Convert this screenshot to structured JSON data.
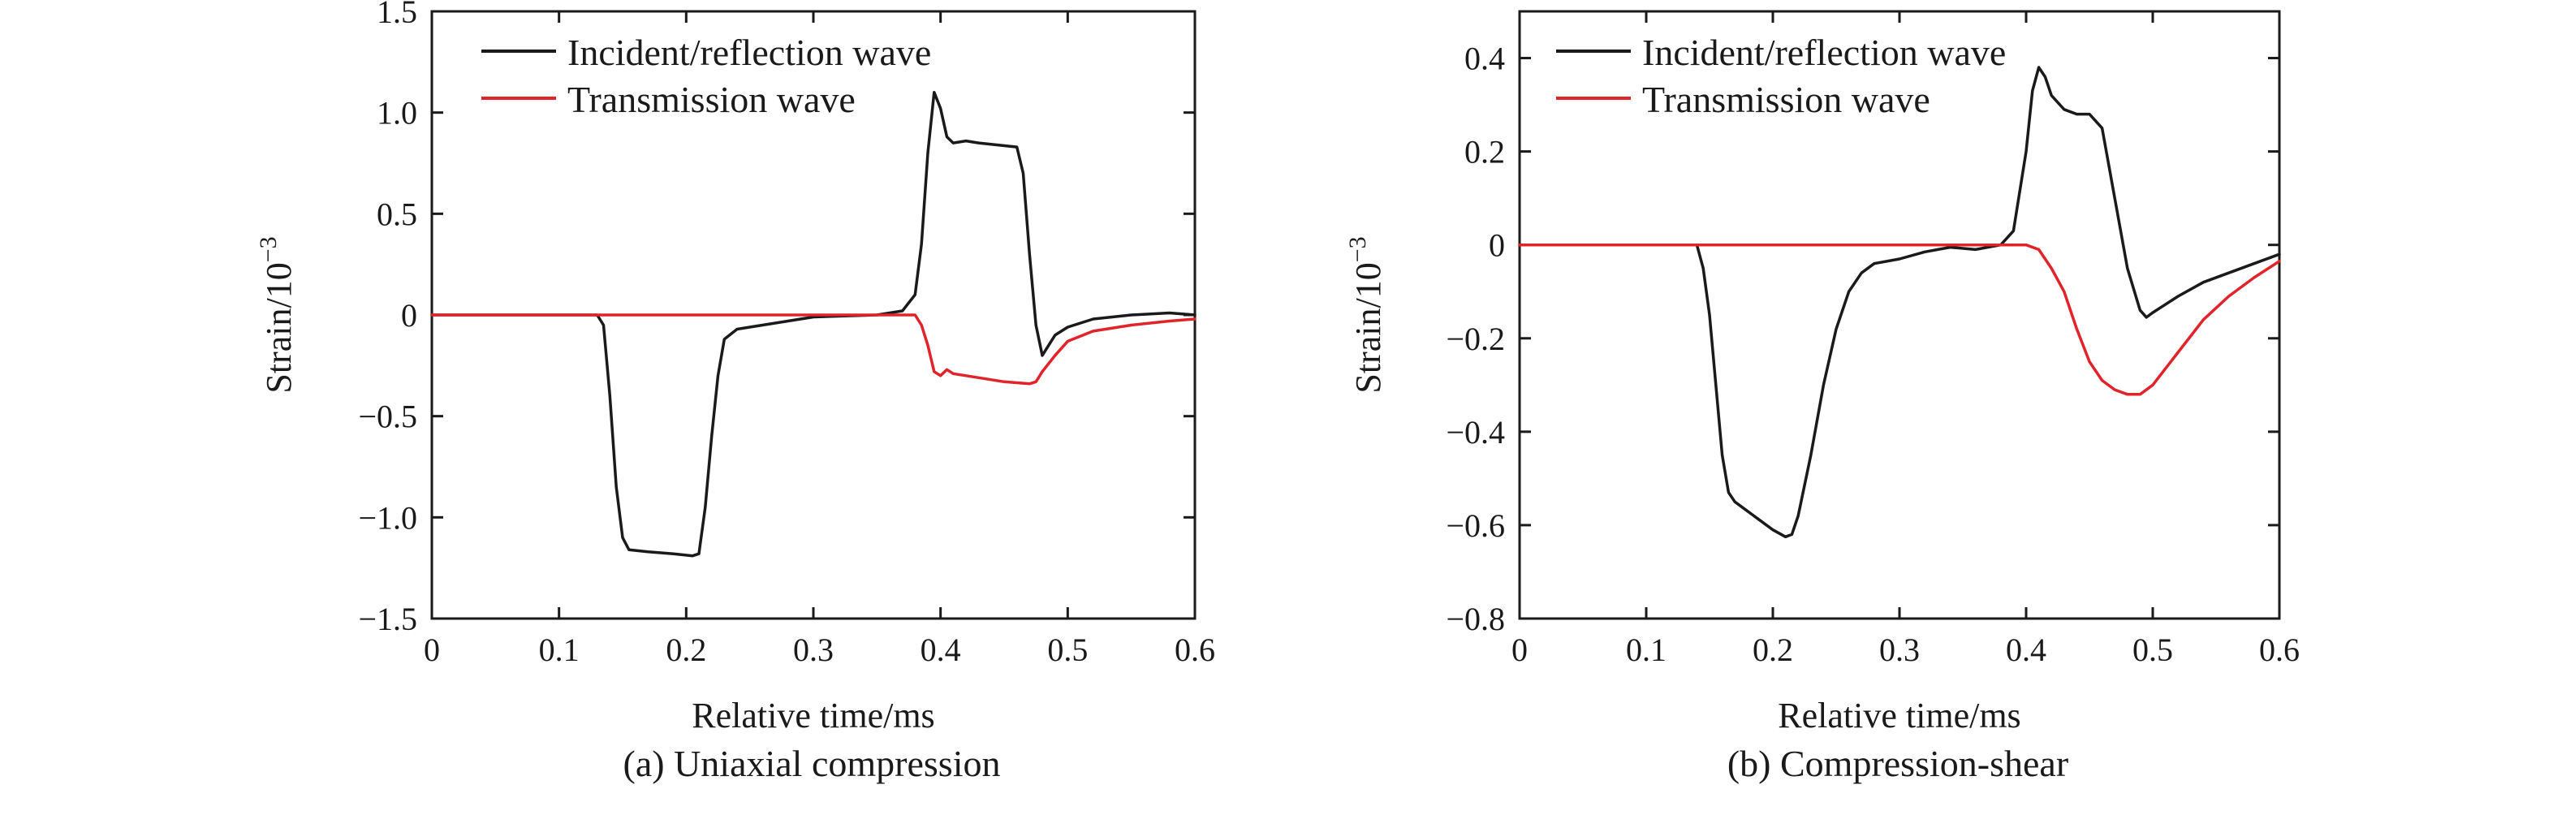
{
  "colors": {
    "incident_reflection": "#1a1a1a",
    "transmission": "#e0242a"
  },
  "chart_data": [
    {
      "type": "line",
      "caption": "(a) Uniaxial compression",
      "xlabel": "Relative time/ms",
      "ylabel": "Strain/10",
      "ylabel_exp": "−3",
      "xlim": [
        0,
        0.6
      ],
      "ylim": [
        -1.5,
        1.5
      ],
      "xticks": [
        0,
        0.1,
        0.2,
        0.3,
        0.4,
        0.5,
        0.6
      ],
      "xtick_labels": [
        "0",
        "0.1",
        "0.2",
        "0.3",
        "0.4",
        "0.5",
        "0.6"
      ],
      "yticks": [
        -1.5,
        -1.0,
        -0.5,
        0,
        0.5,
        1.0,
        1.5
      ],
      "ytick_labels": [
        "−1.5",
        "−1.0",
        "−0.5",
        "0",
        "0.5",
        "1.0",
        "1.5"
      ],
      "legend_position": "top-left",
      "series": [
        {
          "name": "Incident/reflection wave",
          "color": "#1a1a1a",
          "points": [
            [
              0,
              0
            ],
            [
              0.05,
              0
            ],
            [
              0.1,
              0
            ],
            [
              0.13,
              0
            ],
            [
              0.135,
              -0.05
            ],
            [
              0.14,
              -0.4
            ],
            [
              0.145,
              -0.85
            ],
            [
              0.15,
              -1.1
            ],
            [
              0.155,
              -1.16
            ],
            [
              0.17,
              -1.17
            ],
            [
              0.19,
              -1.18
            ],
            [
              0.205,
              -1.19
            ],
            [
              0.21,
              -1.18
            ],
            [
              0.215,
              -0.95
            ],
            [
              0.22,
              -0.6
            ],
            [
              0.225,
              -0.3
            ],
            [
              0.23,
              -0.12
            ],
            [
              0.24,
              -0.07
            ],
            [
              0.26,
              -0.05
            ],
            [
              0.28,
              -0.03
            ],
            [
              0.3,
              -0.01
            ],
            [
              0.35,
              0
            ],
            [
              0.37,
              0.02
            ],
            [
              0.38,
              0.1
            ],
            [
              0.385,
              0.35
            ],
            [
              0.39,
              0.8
            ],
            [
              0.395,
              1.1
            ],
            [
              0.4,
              1.02
            ],
            [
              0.405,
              0.88
            ],
            [
              0.41,
              0.85
            ],
            [
              0.42,
              0.86
            ],
            [
              0.43,
              0.85
            ],
            [
              0.445,
              0.84
            ],
            [
              0.46,
              0.83
            ],
            [
              0.465,
              0.7
            ],
            [
              0.47,
              0.3
            ],
            [
              0.475,
              -0.05
            ],
            [
              0.48,
              -0.2
            ],
            [
              0.485,
              -0.15
            ],
            [
              0.49,
              -0.1
            ],
            [
              0.5,
              -0.06
            ],
            [
              0.52,
              -0.02
            ],
            [
              0.55,
              0
            ],
            [
              0.58,
              0.01
            ],
            [
              0.6,
              0
            ]
          ]
        },
        {
          "name": "Transmission wave",
          "color": "#e0242a",
          "points": [
            [
              0,
              0
            ],
            [
              0.1,
              0
            ],
            [
              0.2,
              0
            ],
            [
              0.3,
              0
            ],
            [
              0.35,
              0
            ],
            [
              0.38,
              0
            ],
            [
              0.385,
              -0.05
            ],
            [
              0.39,
              -0.15
            ],
            [
              0.395,
              -0.28
            ],
            [
              0.4,
              -0.3
            ],
            [
              0.405,
              -0.27
            ],
            [
              0.41,
              -0.29
            ],
            [
              0.43,
              -0.31
            ],
            [
              0.45,
              -0.33
            ],
            [
              0.47,
              -0.34
            ],
            [
              0.475,
              -0.33
            ],
            [
              0.48,
              -0.28
            ],
            [
              0.49,
              -0.2
            ],
            [
              0.5,
              -0.13
            ],
            [
              0.52,
              -0.08
            ],
            [
              0.55,
              -0.05
            ],
            [
              0.58,
              -0.03
            ],
            [
              0.6,
              -0.02
            ]
          ]
        }
      ]
    },
    {
      "type": "line",
      "caption": "(b) Compression-shear",
      "xlabel": "Relative time/ms",
      "ylabel": "Strain/10",
      "ylabel_exp": "−3",
      "xlim": [
        0,
        0.6
      ],
      "ylim": [
        -0.8,
        0.5
      ],
      "xticks": [
        0,
        0.1,
        0.2,
        0.3,
        0.4,
        0.5,
        0.6
      ],
      "xtick_labels": [
        "0",
        "0.1",
        "0.2",
        "0.3",
        "0.4",
        "0.5",
        "0.6"
      ],
      "yticks": [
        -0.8,
        -0.6,
        -0.4,
        -0.2,
        0,
        0.2,
        0.4
      ],
      "ytick_labels": [
        "−0.8",
        "−0.6",
        "−0.4",
        "−0.2",
        "0",
        "0.2",
        "0.4"
      ],
      "legend_position": "top-left",
      "series": [
        {
          "name": "Incident/reflection wave",
          "color": "#1a1a1a",
          "points": [
            [
              0,
              0
            ],
            [
              0.05,
              0
            ],
            [
              0.1,
              0
            ],
            [
              0.14,
              0
            ],
            [
              0.145,
              -0.05
            ],
            [
              0.15,
              -0.15
            ],
            [
              0.155,
              -0.3
            ],
            [
              0.16,
              -0.45
            ],
            [
              0.165,
              -0.53
            ],
            [
              0.17,
              -0.55
            ],
            [
              0.18,
              -0.57
            ],
            [
              0.19,
              -0.59
            ],
            [
              0.2,
              -0.61
            ],
            [
              0.21,
              -0.625
            ],
            [
              0.215,
              -0.62
            ],
            [
              0.22,
              -0.58
            ],
            [
              0.23,
              -0.45
            ],
            [
              0.24,
              -0.3
            ],
            [
              0.25,
              -0.18
            ],
            [
              0.26,
              -0.1
            ],
            [
              0.27,
              -0.06
            ],
            [
              0.28,
              -0.04
            ],
            [
              0.3,
              -0.03
            ],
            [
              0.32,
              -0.015
            ],
            [
              0.34,
              -0.005
            ],
            [
              0.36,
              -0.01
            ],
            [
              0.38,
              0
            ],
            [
              0.39,
              0.03
            ],
            [
              0.4,
              0.2
            ],
            [
              0.405,
              0.33
            ],
            [
              0.41,
              0.38
            ],
            [
              0.415,
              0.36
            ],
            [
              0.42,
              0.32
            ],
            [
              0.43,
              0.29
            ],
            [
              0.44,
              0.28
            ],
            [
              0.45,
              0.28
            ],
            [
              0.46,
              0.25
            ],
            [
              0.47,
              0.1
            ],
            [
              0.48,
              -0.05
            ],
            [
              0.49,
              -0.14
            ],
            [
              0.495,
              -0.155
            ],
            [
              0.5,
              -0.145
            ],
            [
              0.52,
              -0.11
            ],
            [
              0.54,
              -0.08
            ],
            [
              0.56,
              -0.06
            ],
            [
              0.58,
              -0.04
            ],
            [
              0.6,
              -0.02
            ]
          ]
        },
        {
          "name": "Transmission wave",
          "color": "#e0242a",
          "points": [
            [
              0,
              0
            ],
            [
              0.1,
              0
            ],
            [
              0.2,
              0
            ],
            [
              0.3,
              0
            ],
            [
              0.36,
              0
            ],
            [
              0.4,
              0
            ],
            [
              0.41,
              -0.01
            ],
            [
              0.42,
              -0.05
            ],
            [
              0.43,
              -0.1
            ],
            [
              0.44,
              -0.18
            ],
            [
              0.45,
              -0.25
            ],
            [
              0.46,
              -0.29
            ],
            [
              0.47,
              -0.31
            ],
            [
              0.48,
              -0.32
            ],
            [
              0.49,
              -0.32
            ],
            [
              0.5,
              -0.3
            ],
            [
              0.52,
              -0.23
            ],
            [
              0.54,
              -0.16
            ],
            [
              0.56,
              -0.11
            ],
            [
              0.58,
              -0.07
            ],
            [
              0.6,
              -0.035
            ]
          ]
        }
      ]
    }
  ]
}
